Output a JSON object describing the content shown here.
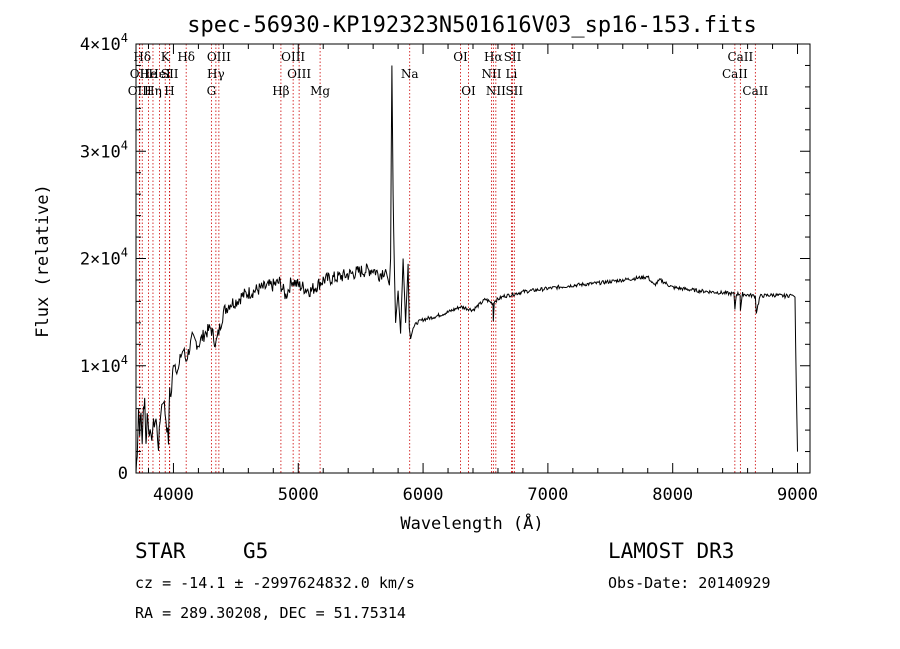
{
  "chart_data": {
    "type": "line",
    "title": "spec-56930-KP192323N501616V03_sp16-153.fits",
    "xlabel": "Wavelength (Å)",
    "ylabel": "Flux (relative)",
    "xlim": [
      3700,
      9100
    ],
    "ylim": [
      0,
      40000
    ],
    "xticks": [
      4000,
      5000,
      6000,
      7000,
      8000,
      9000
    ],
    "xtick_labels": [
      "4000",
      "5000",
      "6000",
      "7000",
      "8000",
      "9000"
    ],
    "yticks": [
      0,
      10000,
      20000,
      30000,
      40000
    ],
    "ytick_labels": [
      "0",
      "1×10",
      "2×10",
      "3×10",
      "4×10"
    ],
    "ytick_exponents": [
      "",
      "4",
      "4",
      "4",
      "4"
    ],
    "series": [
      {
        "name": "flux",
        "x": [
          3700,
          3710,
          3720,
          3730,
          3740,
          3750,
          3760,
          3770,
          3780,
          3790,
          3800,
          3820,
          3840,
          3860,
          3880,
          3900,
          3920,
          3940,
          3960,
          3970,
          3980,
          3990,
          4000,
          4020,
          4040,
          4060,
          4080,
          4100,
          4150,
          4200,
          4250,
          4300,
          4340,
          4400,
          4450,
          4500,
          4550,
          4600,
          4700,
          4800,
          4850,
          4900,
          4950,
          5000,
          5100,
          5200,
          5300,
          5400,
          5500,
          5600,
          5650,
          5700,
          5730,
          5740,
          5750,
          5760,
          5770,
          5780,
          5800,
          5820,
          5840,
          5860,
          5880,
          5890,
          5900,
          5920,
          5950,
          6000,
          6100,
          6200,
          6300,
          6400,
          6500,
          6560,
          6563,
          6570,
          6600,
          6650,
          6700,
          6800,
          7000,
          7200,
          7400,
          7600,
          7800,
          7850,
          7900,
          8000,
          8200,
          8400,
          8490,
          8498,
          8510,
          8540,
          8542,
          8560,
          8600,
          8662,
          8670,
          8700,
          8800,
          8900,
          8960,
          8980,
          8990,
          9000
        ],
        "y": [
          0,
          2000,
          6000,
          4000,
          5500,
          3000,
          6000,
          7000,
          2500,
          5500,
          4500,
          3000,
          4500,
          5000,
          2500,
          6000,
          7000,
          5000,
          3000,
          8000,
          7000,
          8500,
          10500,
          10000,
          9500,
          11000,
          11500,
          10500,
          12500,
          12000,
          13000,
          13500,
          12000,
          15000,
          15800,
          16000,
          16500,
          16800,
          17200,
          17500,
          17800,
          16500,
          18000,
          17500,
          17000,
          18000,
          18200,
          18500,
          18800,
          19000,
          18500,
          19000,
          17500,
          20000,
          38000,
          26000,
          19000,
          14000,
          17000,
          13000,
          20000,
          14000,
          19500,
          13500,
          12500,
          13500,
          14000,
          14300,
          14600,
          15000,
          15500,
          15200,
          16200,
          15800,
          14200,
          16000,
          16200,
          16500,
          16600,
          16900,
          17200,
          17500,
          17700,
          18000,
          18300,
          17500,
          18000,
          17300,
          17000,
          16800,
          16700,
          15300,
          16700,
          16700,
          15200,
          16700,
          16600,
          16500,
          15000,
          16500,
          16600,
          16500,
          16600,
          16400,
          8000,
          2000
        ]
      }
    ],
    "line_markers": [
      {
        "label": "Hδ",
        "x": 3750,
        "row": 1
      },
      {
        "label": "OII",
        "x": 3727,
        "row": 2
      },
      {
        "label": "OIII",
        "x": 3730,
        "row": 3
      },
      {
        "label": "He",
        "x": 3800,
        "row": 2
      },
      {
        "label": "Hη",
        "x": 3836,
        "row": 3
      },
      {
        "label": "K",
        "x": 3934,
        "row": 1
      },
      {
        "label": "HeI",
        "x": 3889,
        "row": 2
      },
      {
        "label": "SII",
        "x": 3970,
        "row": 2
      },
      {
        "label": "H",
        "x": 3968,
        "row": 3
      },
      {
        "label": "Hδ",
        "x": 4102,
        "row": 1
      },
      {
        "label": "OIII",
        "x": 4364,
        "row": 1
      },
      {
        "label": "Hγ",
        "x": 4340,
        "row": 2
      },
      {
        "label": "G",
        "x": 4304,
        "row": 3
      },
      {
        "label": "OIII",
        "x": 4959,
        "row": 1
      },
      {
        "label": "OIII",
        "x": 5007,
        "row": 2
      },
      {
        "label": "Hβ",
        "x": 4861,
        "row": 3
      },
      {
        "label": "Mg",
        "x": 5175,
        "row": 3
      },
      {
        "label": "Na",
        "x": 5893,
        "row": 2
      },
      {
        "label": "OI",
        "x": 6300,
        "row": 1
      },
      {
        "label": "OI",
        "x": 6364,
        "row": 3
      },
      {
        "label": "Hα",
        "x": 6563,
        "row": 1
      },
      {
        "label": "SII",
        "x": 6717,
        "row": 1
      },
      {
        "label": "NII",
        "x": 6548,
        "row": 2
      },
      {
        "label": "Li",
        "x": 6708,
        "row": 2
      },
      {
        "label": "NII",
        "x": 6583,
        "row": 3
      },
      {
        "label": "SII",
        "x": 6731,
        "row": 3
      },
      {
        "label": "CaII",
        "x": 8542,
        "row": 1
      },
      {
        "label": "CaII",
        "x": 8498,
        "row": 2
      },
      {
        "label": "CaII",
        "x": 8662,
        "row": 3
      }
    ],
    "marker_color": "#cc0000"
  },
  "info": {
    "class_label": "STAR",
    "subclass": "G5",
    "survey": "LAMOST DR3",
    "cz_line": "cz = -14.1 ± -2997624832.0 km/s",
    "obs_date": "Obs-Date: 20140929",
    "coords": "RA = 289.30208, DEC =  51.75314"
  }
}
